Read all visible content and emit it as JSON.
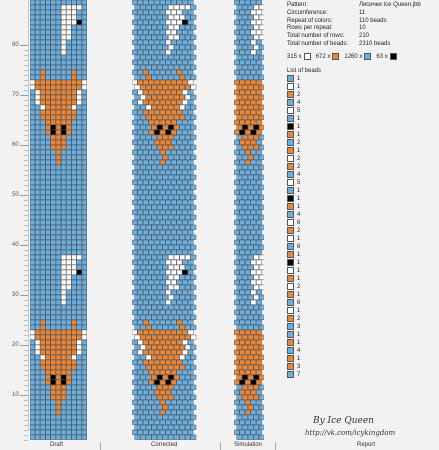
{
  "colors": {
    "white": "#ffffff",
    "orange": "#e8873a",
    "blue": "#6aaee0",
    "black": "#000000"
  },
  "ruler": [
    "80",
    "70",
    "60",
    "50",
    "40",
    "30",
    "20",
    "10"
  ],
  "footer": {
    "draft": "Draft",
    "corrected": "Corrected",
    "simulation": "Simulation",
    "report": "Report"
  },
  "report": {
    "fields": [
      {
        "label": "Pattern:",
        "value": "Лисички Ice Queen.jbb"
      },
      {
        "label": "Circumference:",
        "value": "11"
      },
      {
        "label": "Repeat of colors:",
        "value": "110 beads"
      },
      {
        "label": "Rows per repeat:",
        "value": "10"
      },
      {
        "label": "Total number of rows:",
        "value": "210"
      },
      {
        "label": "Total number of beads:",
        "value": "2310 beads"
      }
    ],
    "counts": [
      {
        "text": "315 x",
        "color": "white"
      },
      {
        "text": "672 x",
        "color": "orange"
      },
      {
        "text": "1260 x",
        "color": "blue"
      },
      {
        "text": "63 x",
        "color": "black"
      }
    ],
    "list_title": "List of beads",
    "list": [
      {
        "color": "blue",
        "n": "1"
      },
      {
        "color": "white",
        "n": "1"
      },
      {
        "color": "orange",
        "n": "2"
      },
      {
        "color": "blue",
        "n": "4"
      },
      {
        "color": "white",
        "n": "5"
      },
      {
        "color": "blue",
        "n": "1"
      },
      {
        "color": "black",
        "n": "1"
      },
      {
        "color": "orange",
        "n": "1"
      },
      {
        "color": "blue",
        "n": "2"
      },
      {
        "color": "orange",
        "n": "1"
      },
      {
        "color": "white",
        "n": "2"
      },
      {
        "color": "orange",
        "n": "2"
      },
      {
        "color": "blue",
        "n": "4"
      },
      {
        "color": "white",
        "n": "5"
      },
      {
        "color": "blue",
        "n": "1"
      },
      {
        "color": "black",
        "n": "1"
      },
      {
        "color": "orange",
        "n": "1"
      },
      {
        "color": "blue",
        "n": "4"
      },
      {
        "color": "white",
        "n": "6"
      },
      {
        "color": "orange",
        "n": "2"
      },
      {
        "color": "white",
        "n": "1"
      },
      {
        "color": "blue",
        "n": "6"
      },
      {
        "color": "orange",
        "n": "1"
      },
      {
        "color": "black",
        "n": "1"
      },
      {
        "color": "white",
        "n": "1"
      },
      {
        "color": "orange",
        "n": "1"
      },
      {
        "color": "white",
        "n": "2"
      },
      {
        "color": "orange",
        "n": "1"
      },
      {
        "color": "blue",
        "n": "6"
      },
      {
        "color": "white",
        "n": "1"
      },
      {
        "color": "orange",
        "n": "2"
      },
      {
        "color": "blue",
        "n": "3"
      },
      {
        "color": "blue",
        "n": "1"
      },
      {
        "color": "orange",
        "n": "1"
      },
      {
        "color": "blue",
        "n": "4"
      },
      {
        "color": "orange",
        "n": "1"
      },
      {
        "color": "orange",
        "n": "3"
      },
      {
        "color": "blue",
        "n": "7"
      }
    ]
  },
  "signature": {
    "line1": "By Ice Queen",
    "line2": "http://vk.com/icykingdom"
  }
}
